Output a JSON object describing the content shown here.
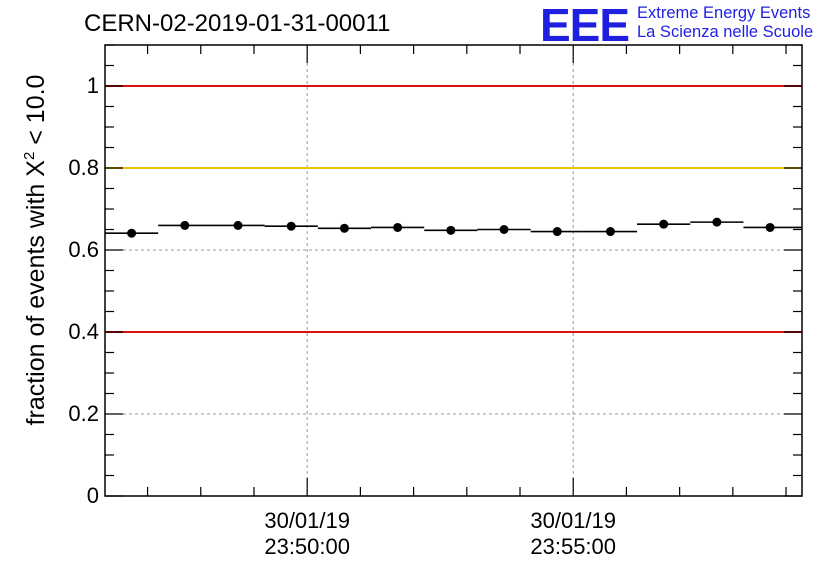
{
  "header": {
    "title": "CERN-02-2019-01-31-00011",
    "logo_text": "EEE",
    "logo_line1": "Extreme Energy Events",
    "logo_line2": "La Scienza nelle Scuole"
  },
  "colors": {
    "red": "#e01010",
    "yellow": "#f5c000",
    "grid": "#999999",
    "logo": "#1f1fe0"
  },
  "chart_data": {
    "type": "scatter",
    "title": "CERN-02-2019-01-31-00011",
    "ylabel_prefix": "fraction of events with X",
    "ylabel_sup": "2",
    "ylabel_suffix": " < 10.0",
    "xlabel": "",
    "ylim": [
      0,
      1.1
    ],
    "xlim_minutes": [
      -8.8,
      4.3
    ],
    "grid": true,
    "x_ticks": [
      {
        "minutes": -5,
        "date": "30/01/19",
        "time": "23:50:00"
      },
      {
        "minutes": 0,
        "date": "30/01/19",
        "time": "23:55:00"
      }
    ],
    "y_ticks": [
      {
        "value": 0,
        "label": "0"
      },
      {
        "value": 0.2,
        "label": "0.2"
      },
      {
        "value": 0.4,
        "label": "0.4"
      },
      {
        "value": 0.6,
        "label": "0.6"
      },
      {
        "value": 0.8,
        "label": "0.8"
      },
      {
        "value": 1.0,
        "label": "1"
      }
    ],
    "reference_lines": [
      {
        "value": 1.0,
        "color": "#e01010"
      },
      {
        "value": 0.8,
        "color": "#f5c000"
      },
      {
        "value": 0.4,
        "color": "#e01010"
      }
    ],
    "points": [
      {
        "x": -8.3,
        "y": 0.641,
        "x0": -8.8,
        "x1": -7.8
      },
      {
        "x": -7.3,
        "y": 0.66,
        "x0": -7.8,
        "x1": -6.8
      },
      {
        "x": -6.3,
        "y": 0.66,
        "x0": -6.8,
        "x1": -5.8
      },
      {
        "x": -5.3,
        "y": 0.658,
        "x0": -5.8,
        "x1": -4.8
      },
      {
        "x": -4.3,
        "y": 0.653,
        "x0": -4.8,
        "x1": -3.8
      },
      {
        "x": -3.3,
        "y": 0.655,
        "x0": -3.8,
        "x1": -2.8
      },
      {
        "x": -2.3,
        "y": 0.648,
        "x0": -2.8,
        "x1": -1.8
      },
      {
        "x": -1.3,
        "y": 0.65,
        "x0": -1.8,
        "x1": -0.8
      },
      {
        "x": -0.3,
        "y": 0.645,
        "x0": -0.8,
        "x1": 0.2
      },
      {
        "x": 0.7,
        "y": 0.645,
        "x0": 0.2,
        "x1": 1.2
      },
      {
        "x": 1.7,
        "y": 0.663,
        "x0": 1.2,
        "x1": 2.2
      },
      {
        "x": 2.7,
        "y": 0.668,
        "x0": 2.2,
        "x1": 3.2
      },
      {
        "x": 3.7,
        "y": 0.655,
        "x0": 3.2,
        "x1": 4.3
      }
    ]
  }
}
